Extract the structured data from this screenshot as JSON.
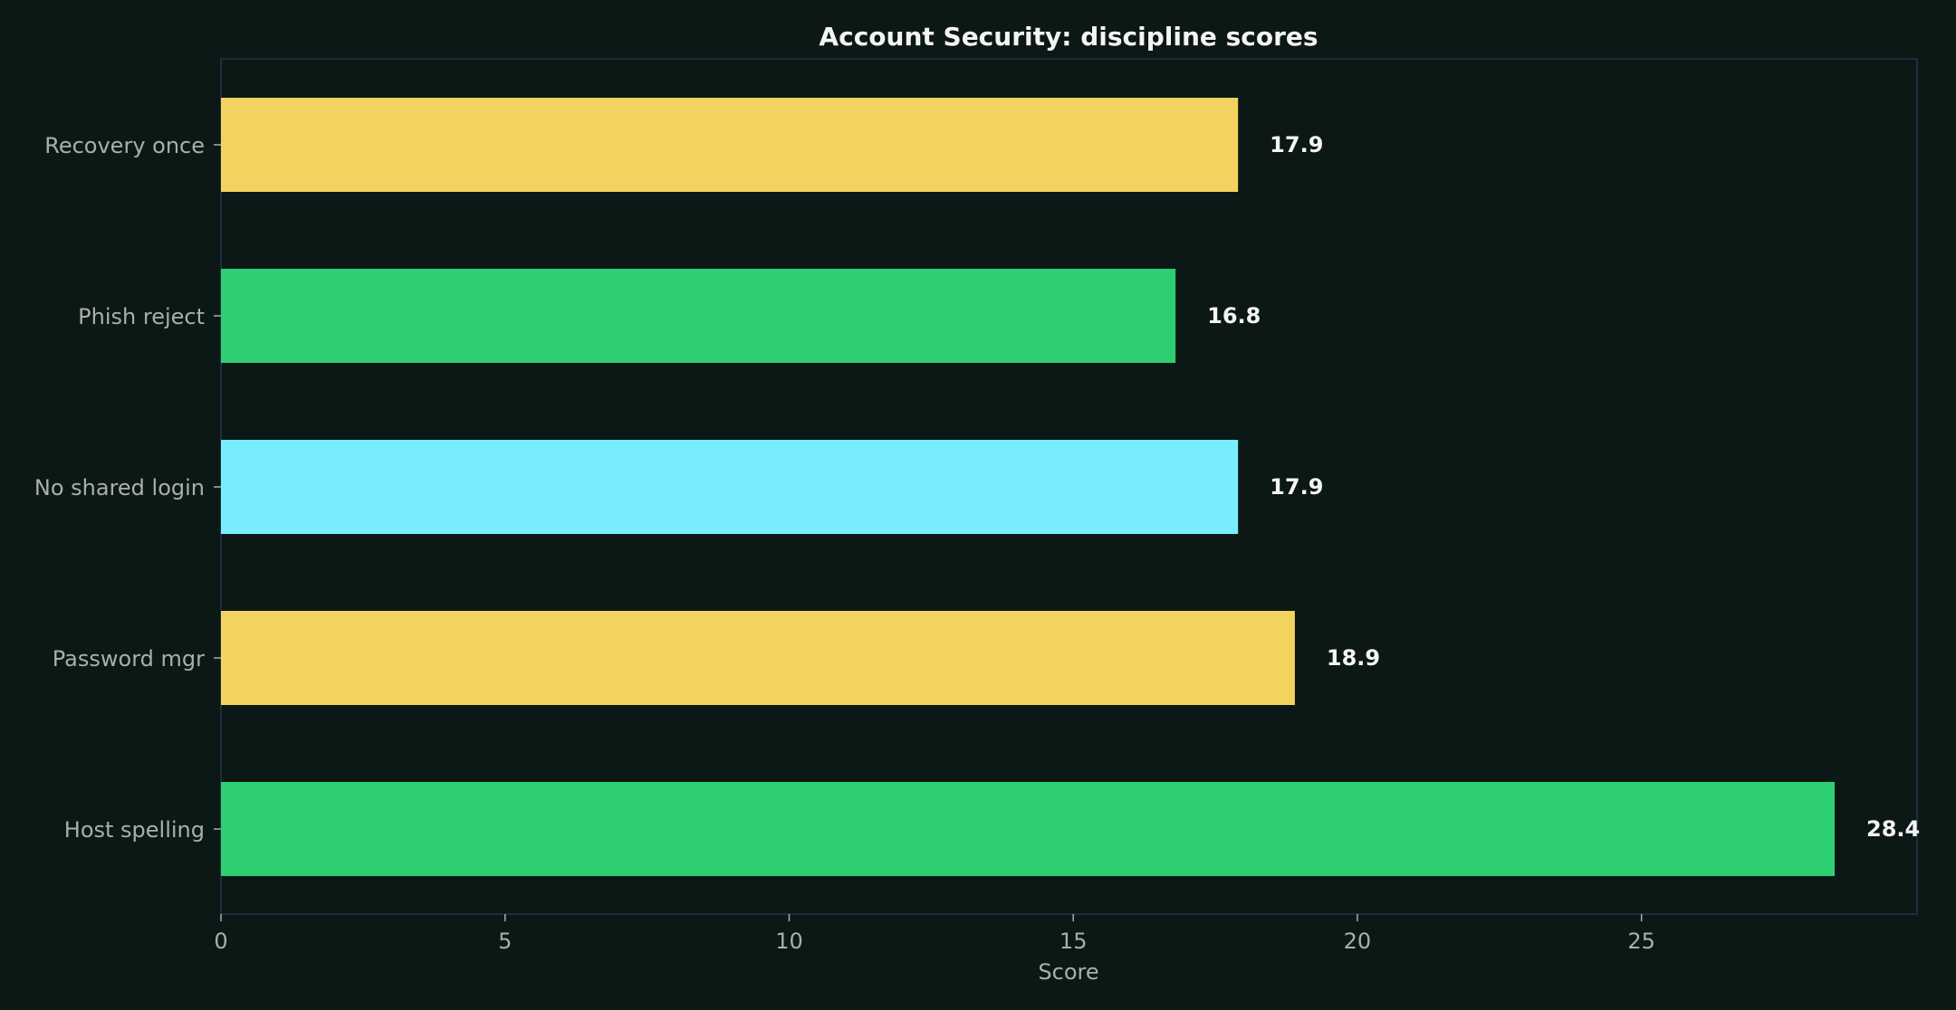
{
  "chart_data": {
    "type": "bar",
    "orientation": "horizontal",
    "title": "Account Security: discipline scores",
    "xlabel": "Score",
    "ylabel": "",
    "categories": [
      "Recovery once",
      "Phish reject",
      "No shared login",
      "Password mgr",
      "Host spelling"
    ],
    "values": [
      17.9,
      16.8,
      17.9,
      18.9,
      28.4
    ],
    "value_labels": [
      "17.9",
      "16.8",
      "17.9",
      "18.9",
      "28.4"
    ],
    "colors": [
      "#f2d35f",
      "#2ecf72",
      "#7aedfd",
      "#f2d35f",
      "#2ecf72"
    ],
    "xlim": [
      0,
      29.85
    ],
    "xticks": [
      0,
      5,
      10,
      15,
      20,
      25
    ],
    "xtick_labels": [
      "0",
      "5",
      "10",
      "15",
      "20",
      "25"
    ],
    "grid": false,
    "legend": "none"
  },
  "theme": {
    "background": "#0c1815",
    "frame": "#1f2c3f",
    "text_primary": "#f4f4f4",
    "text_secondary": "#a8b0ab"
  }
}
